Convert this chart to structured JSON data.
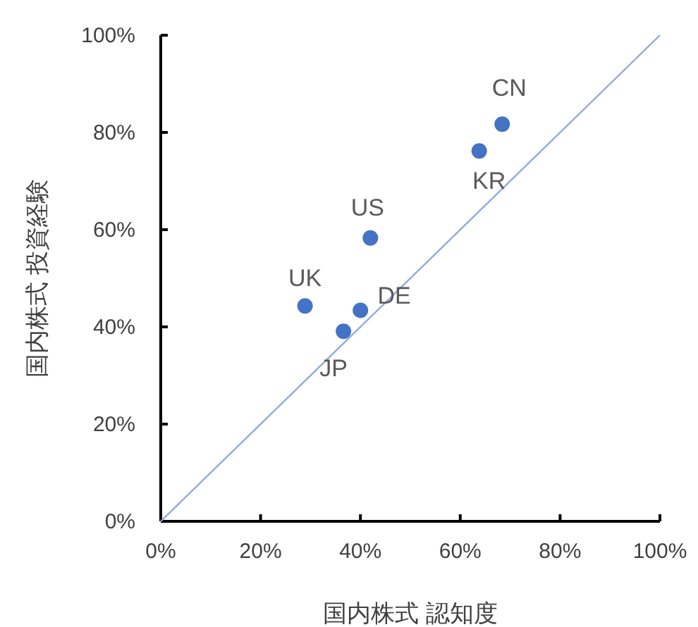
{
  "chart_data": {
    "type": "scatter",
    "xlabel": "国内株式 認知度",
    "ylabel": "国内株式 投資経験",
    "series": [
      {
        "color": "#4472c4",
        "x": [
          68.4,
          63.8,
          42.0,
          28.9,
          40.0,
          36.6
        ],
        "values": [
          81.7,
          76.2,
          58.3,
          44.3,
          43.4,
          39.1
        ]
      },
      {
        "type": "line",
        "color": "#8faadc",
        "x": [
          0,
          100
        ],
        "values": [
          0,
          100
        ]
      }
    ],
    "annotations": [
      {
        "text": "CN",
        "x": 68.4,
        "y": 81.7
      },
      {
        "text": "KR",
        "x": 63.8,
        "y": 76.2
      },
      {
        "text": "US",
        "x": 42.0,
        "y": 58.3
      },
      {
        "text": "UK",
        "x": 28.9,
        "y": 44.3
      },
      {
        "text": "DE",
        "x": 40.0,
        "y": 43.4
      },
      {
        "text": "JP",
        "x": 36.6,
        "y": 39.1
      }
    ],
    "xlim": [
      0,
      100
    ],
    "ylim": [
      0,
      100
    ],
    "xticks": [
      {
        "value": 0,
        "label": "0%"
      },
      {
        "value": 20,
        "label": "20%"
      },
      {
        "value": 40,
        "label": "40%"
      },
      {
        "value": 60,
        "label": "60%"
      },
      {
        "value": 80,
        "label": "80%"
      },
      {
        "value": 100,
        "label": "100%"
      }
    ],
    "yticks": [
      {
        "value": 0,
        "label": "0%"
      },
      {
        "value": 20,
        "label": "20%"
      },
      {
        "value": 40,
        "label": "40%"
      },
      {
        "value": 60,
        "label": "60%"
      },
      {
        "value": 80,
        "label": "80%"
      },
      {
        "value": 100,
        "label": "100%"
      }
    ],
    "grid": false
  }
}
